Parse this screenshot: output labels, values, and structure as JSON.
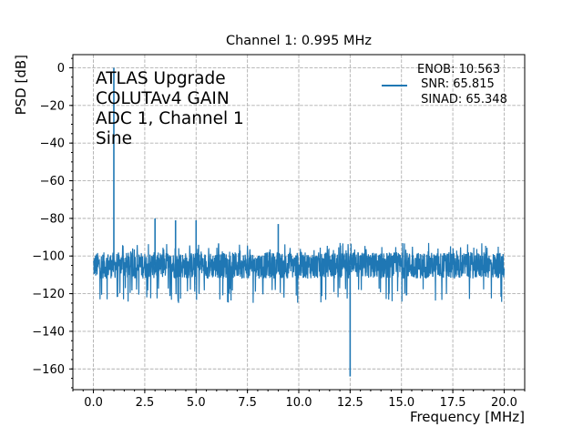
{
  "chart_data": {
    "type": "line",
    "title": "Channel 1: 0.995 MHz",
    "xlabel": "Frequency [MHz]",
    "ylabel": "PSD [dB]",
    "xlim": [
      -1.0,
      21.0
    ],
    "ylim": [
      -171,
      7
    ],
    "xticks": [
      0.0,
      2.5,
      5.0,
      7.5,
      10.0,
      12.5,
      15.0,
      17.5,
      20.0
    ],
    "xtick_labels": [
      "0.0",
      "2.5",
      "5.0",
      "7.5",
      "10.0",
      "12.5",
      "15.0",
      "17.5",
      "20.0"
    ],
    "yticks": [
      0,
      -20,
      -40,
      -60,
      -80,
      -100,
      -120,
      -140,
      -160
    ],
    "ytick_labels": [
      "0",
      "−20",
      "−40",
      "−60",
      "−80",
      "−100",
      "−120",
      "−140",
      "−160"
    ],
    "grid": true,
    "color": "#1f77b4",
    "annotation": [
      "ATLAS Upgrade",
      "COLUTAv4 GAIN",
      "ADC 1, Channel 1",
      "Sine"
    ],
    "legend": {
      "placement": "top-right",
      "lines": [
        "ENOB: 10.563",
        " SNR: 65.815",
        " SINAD: 65.348"
      ]
    },
    "noise_floor_db": -105,
    "noise_range_db": [
      -125,
      -93
    ],
    "series": [
      {
        "x": [
          0.0,
          0.4,
          0.995,
          1.5,
          2.0,
          3.0,
          4.0,
          4.0,
          5.0,
          7.5,
          9.0,
          10.0,
          12.5,
          15.0,
          17.5,
          20.0
        ],
        "y": [
          -104,
          -104,
          0,
          -106,
          -104,
          -80,
          -104,
          -81,
          -81,
          -104,
          -83,
          -105,
          -164,
          -104,
          -104,
          -104
        ]
      }
    ]
  }
}
